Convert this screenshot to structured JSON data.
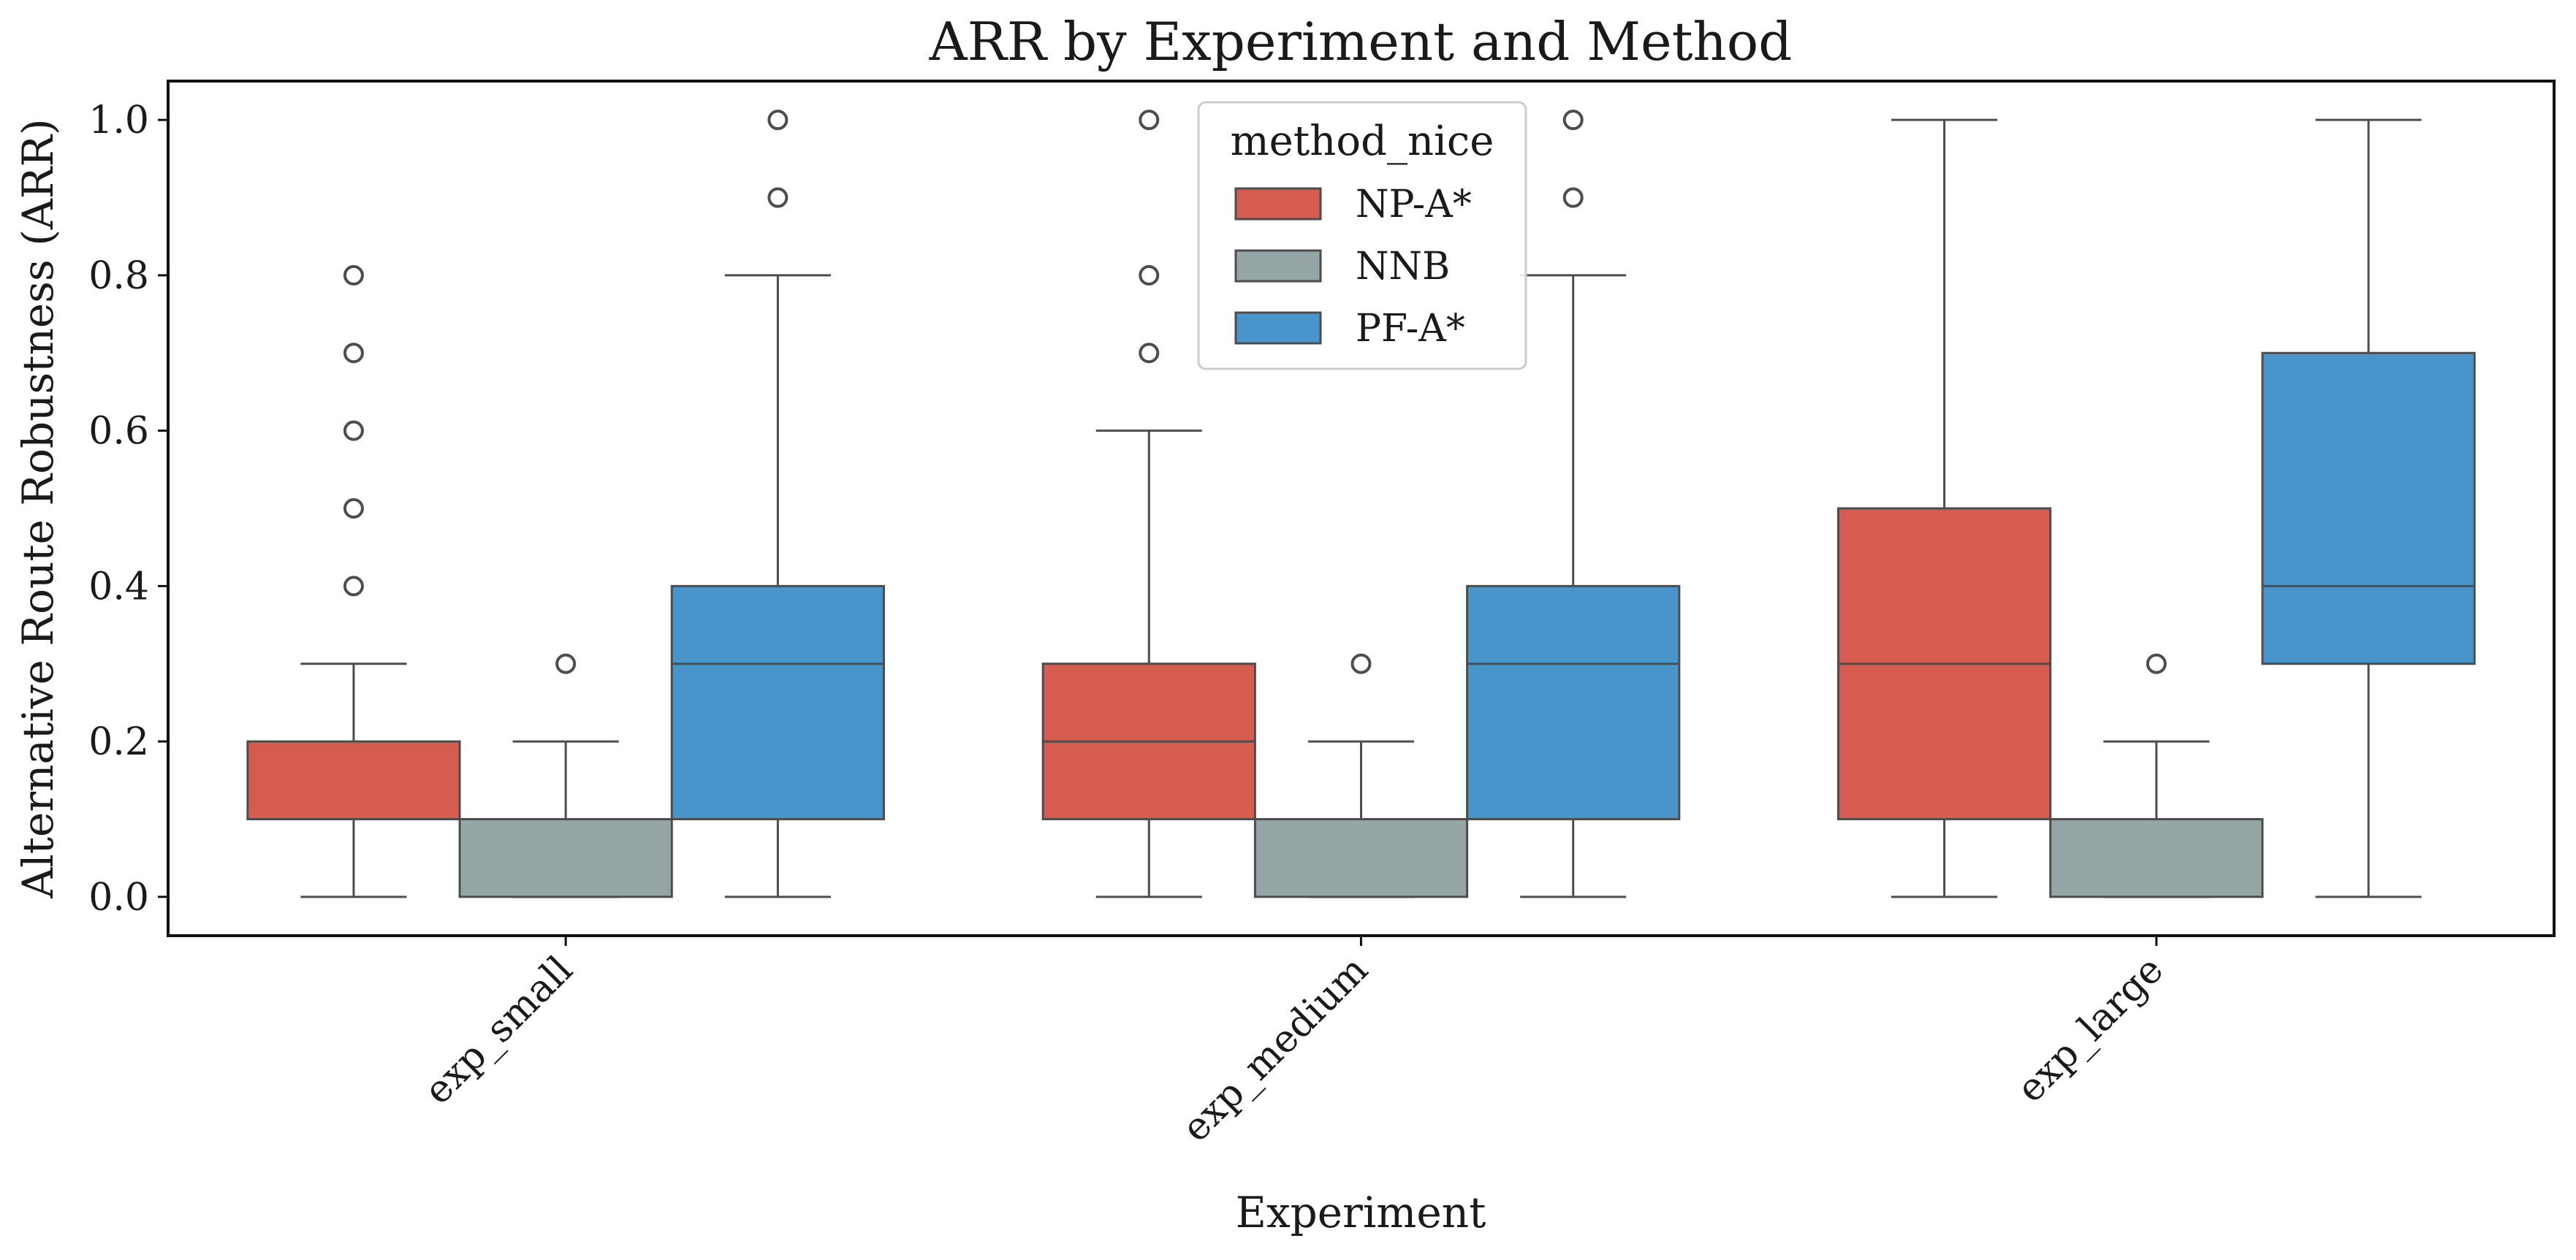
{
  "chart_data": {
    "type": "box",
    "title": "ARR by Experiment and Method",
    "xlabel": "Experiment",
    "ylabel": "Alternative Route Robustness (ARR)",
    "ylim": [
      -0.05,
      1.05
    ],
    "yticks": [
      0.0,
      0.2,
      0.4,
      0.6,
      0.8,
      1.0
    ],
    "ytick_labels": [
      "0.0",
      "0.2",
      "0.4",
      "0.6",
      "0.8",
      "1.0"
    ],
    "categories": [
      "exp_small",
      "exp_medium",
      "exp_large"
    ],
    "legend": {
      "title": "method_nice",
      "placement": "upper-center",
      "entries": [
        {
          "name": "NP-A*",
          "color": "#d65c4f"
        },
        {
          "name": "NNB",
          "color": "#95a5a6"
        },
        {
          "name": "PF-A*",
          "color": "#4894cb"
        }
      ]
    },
    "series": [
      {
        "name": "NP-A*",
        "color": "#d65c4f",
        "boxes": [
          {
            "whisker_low": 0.0,
            "q1": 0.1,
            "median": 0.1,
            "q3": 0.2,
            "whisker_high": 0.3,
            "outliers": [
              0.4,
              0.5,
              0.6,
              0.7,
              0.8
            ]
          },
          {
            "whisker_low": 0.0,
            "q1": 0.1,
            "median": 0.2,
            "q3": 0.3,
            "whisker_high": 0.6,
            "outliers": [
              0.7,
              0.8,
              1.0
            ]
          },
          {
            "whisker_low": 0.0,
            "q1": 0.1,
            "median": 0.3,
            "q3": 0.5,
            "whisker_high": 1.0,
            "outliers": []
          }
        ]
      },
      {
        "name": "NNB",
        "color": "#95a5a6",
        "boxes": [
          {
            "whisker_low": 0.0,
            "q1": 0.0,
            "median": 0.1,
            "q3": 0.1,
            "whisker_high": 0.2,
            "outliers": [
              0.3
            ]
          },
          {
            "whisker_low": 0.0,
            "q1": 0.0,
            "median": 0.1,
            "q3": 0.1,
            "whisker_high": 0.2,
            "outliers": [
              0.3
            ]
          },
          {
            "whisker_low": 0.0,
            "q1": 0.0,
            "median": 0.1,
            "q3": 0.1,
            "whisker_high": 0.2,
            "outliers": [
              0.3
            ]
          }
        ]
      },
      {
        "name": "PF-A*",
        "color": "#4894cb",
        "boxes": [
          {
            "whisker_low": 0.0,
            "q1": 0.1,
            "median": 0.3,
            "q3": 0.4,
            "whisker_high": 0.8,
            "outliers": [
              0.9,
              1.0
            ]
          },
          {
            "whisker_low": 0.0,
            "q1": 0.1,
            "median": 0.3,
            "q3": 0.4,
            "whisker_high": 0.8,
            "outliers": [
              0.9,
              1.0
            ]
          },
          {
            "whisker_low": 0.0,
            "q1": 0.3,
            "median": 0.4,
            "q3": 0.7,
            "whisker_high": 1.0,
            "outliers": []
          }
        ]
      }
    ]
  }
}
